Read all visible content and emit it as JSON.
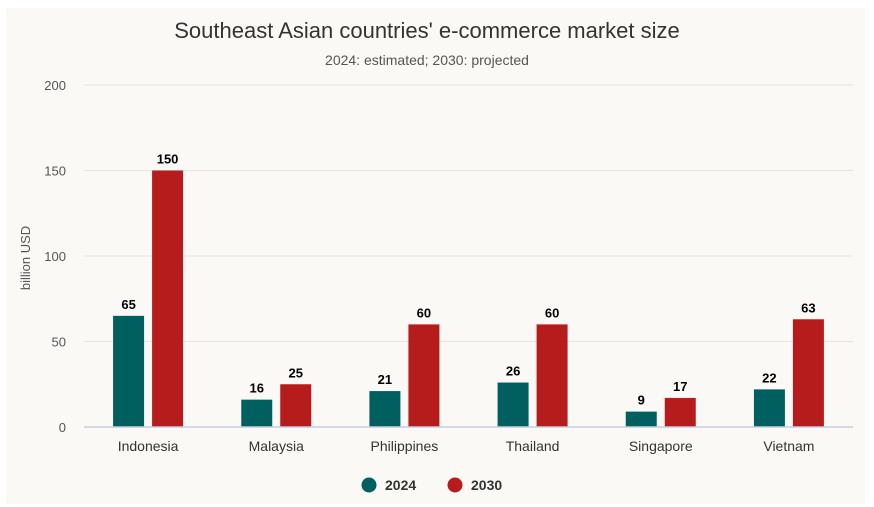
{
  "chart_data": {
    "type": "bar",
    "title": "Southeast Asian countries' e-commerce market size",
    "subtitle": "2024: estimated; 2030: projected",
    "xlabel": "",
    "ylabel": "billion USD",
    "ylim": [
      0,
      200
    ],
    "yticks": [
      0,
      50,
      100,
      150,
      200
    ],
    "grid": true,
    "legend": "bottom-center",
    "categories": [
      "Indonesia",
      "Malaysia",
      "Philippines",
      "Thailand",
      "Singapore",
      "Vietnam"
    ],
    "series": [
      {
        "name": "2024",
        "color": "#005f5f",
        "values": [
          65,
          16,
          21,
          26,
          9,
          22
        ]
      },
      {
        "name": "2030",
        "color": "#b71c1c",
        "values": [
          150,
          25,
          60,
          60,
          17,
          63
        ]
      }
    ]
  }
}
